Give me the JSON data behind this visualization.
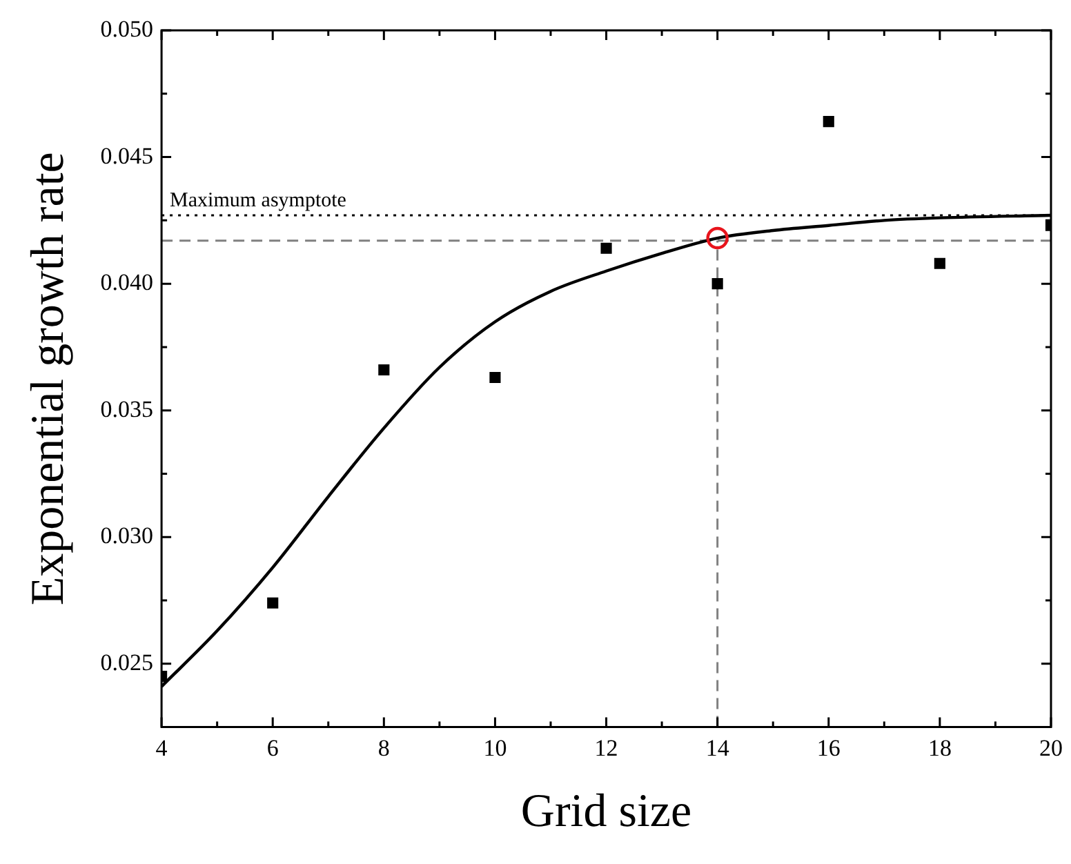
{
  "chart_data": {
    "type": "scatter",
    "xlabel": "Grid size",
    "ylabel": "Exponential growth rate",
    "xlim": [
      4,
      20
    ],
    "xticks": [
      4,
      {
        "value": 5,
        "label": null
      },
      6,
      {
        "value": 7,
        "label": null
      },
      8,
      {
        "value": 9,
        "label": null
      },
      10,
      {
        "value": 11,
        "label": null
      },
      12,
      {
        "value": 13,
        "label": null
      },
      14,
      {
        "value": 15,
        "label": null
      },
      16,
      {
        "value": 17,
        "label": null
      },
      18,
      {
        "value": 19,
        "label": null
      },
      20
    ],
    "ylim": [
      0.0225,
      0.05
    ],
    "yticks": [
      {
        "value": 0.025,
        "label": "0.025"
      },
      {
        "value": 0.0275,
        "label": null
      },
      {
        "value": 0.03,
        "label": "0.030"
      },
      {
        "value": 0.0325,
        "label": null
      },
      {
        "value": 0.035,
        "label": "0.035"
      },
      {
        "value": 0.0375,
        "label": null
      },
      {
        "value": 0.04,
        "label": "0.040"
      },
      {
        "value": 0.0425,
        "label": null
      },
      {
        "value": 0.045,
        "label": "0.045"
      },
      {
        "value": 0.0475,
        "label": null
      },
      {
        "value": 0.05,
        "label": "0.050"
      }
    ],
    "grid": false,
    "legend": false,
    "series": [
      {
        "type": "line",
        "color": "#000000",
        "marker": "none",
        "line_style": "solid",
        "x": [
          4,
          5,
          6,
          7,
          8,
          9,
          10,
          11,
          12,
          13,
          14,
          15,
          16,
          17,
          18,
          20
        ],
        "values": [
          0.0241,
          0.0263,
          0.0288,
          0.0316,
          0.0343,
          0.0367,
          0.0385,
          0.0397,
          0.0405,
          0.0412,
          0.0418,
          0.0421,
          0.0423,
          0.0425,
          0.0426,
          0.0427
        ]
      },
      {
        "type": "scatter",
        "color": "#000000",
        "marker": "square",
        "x": [
          4,
          6,
          8,
          10,
          12,
          14,
          16,
          18,
          20
        ],
        "values": [
          0.0245,
          0.0274,
          0.0366,
          0.0363,
          0.0414,
          0.04,
          0.0464,
          0.0408,
          0.0423
        ]
      },
      {
        "type": "scatter",
        "color": "#e8141c",
        "marker": "circle",
        "x": [
          14
        ],
        "values": [
          0.0418
        ]
      }
    ],
    "ref_lines": [
      {
        "axis": "y",
        "value": 0.0427,
        "label": "Maximum asymptote",
        "line_style": "dotted",
        "color": "#000000"
      },
      {
        "axis": "y",
        "value": 0.0417,
        "label": null,
        "line_style": "dashed",
        "color": "#808080"
      },
      {
        "axis": "x",
        "value": 14,
        "label": null,
        "line_style": "dashed",
        "color": "#808080"
      }
    ]
  }
}
